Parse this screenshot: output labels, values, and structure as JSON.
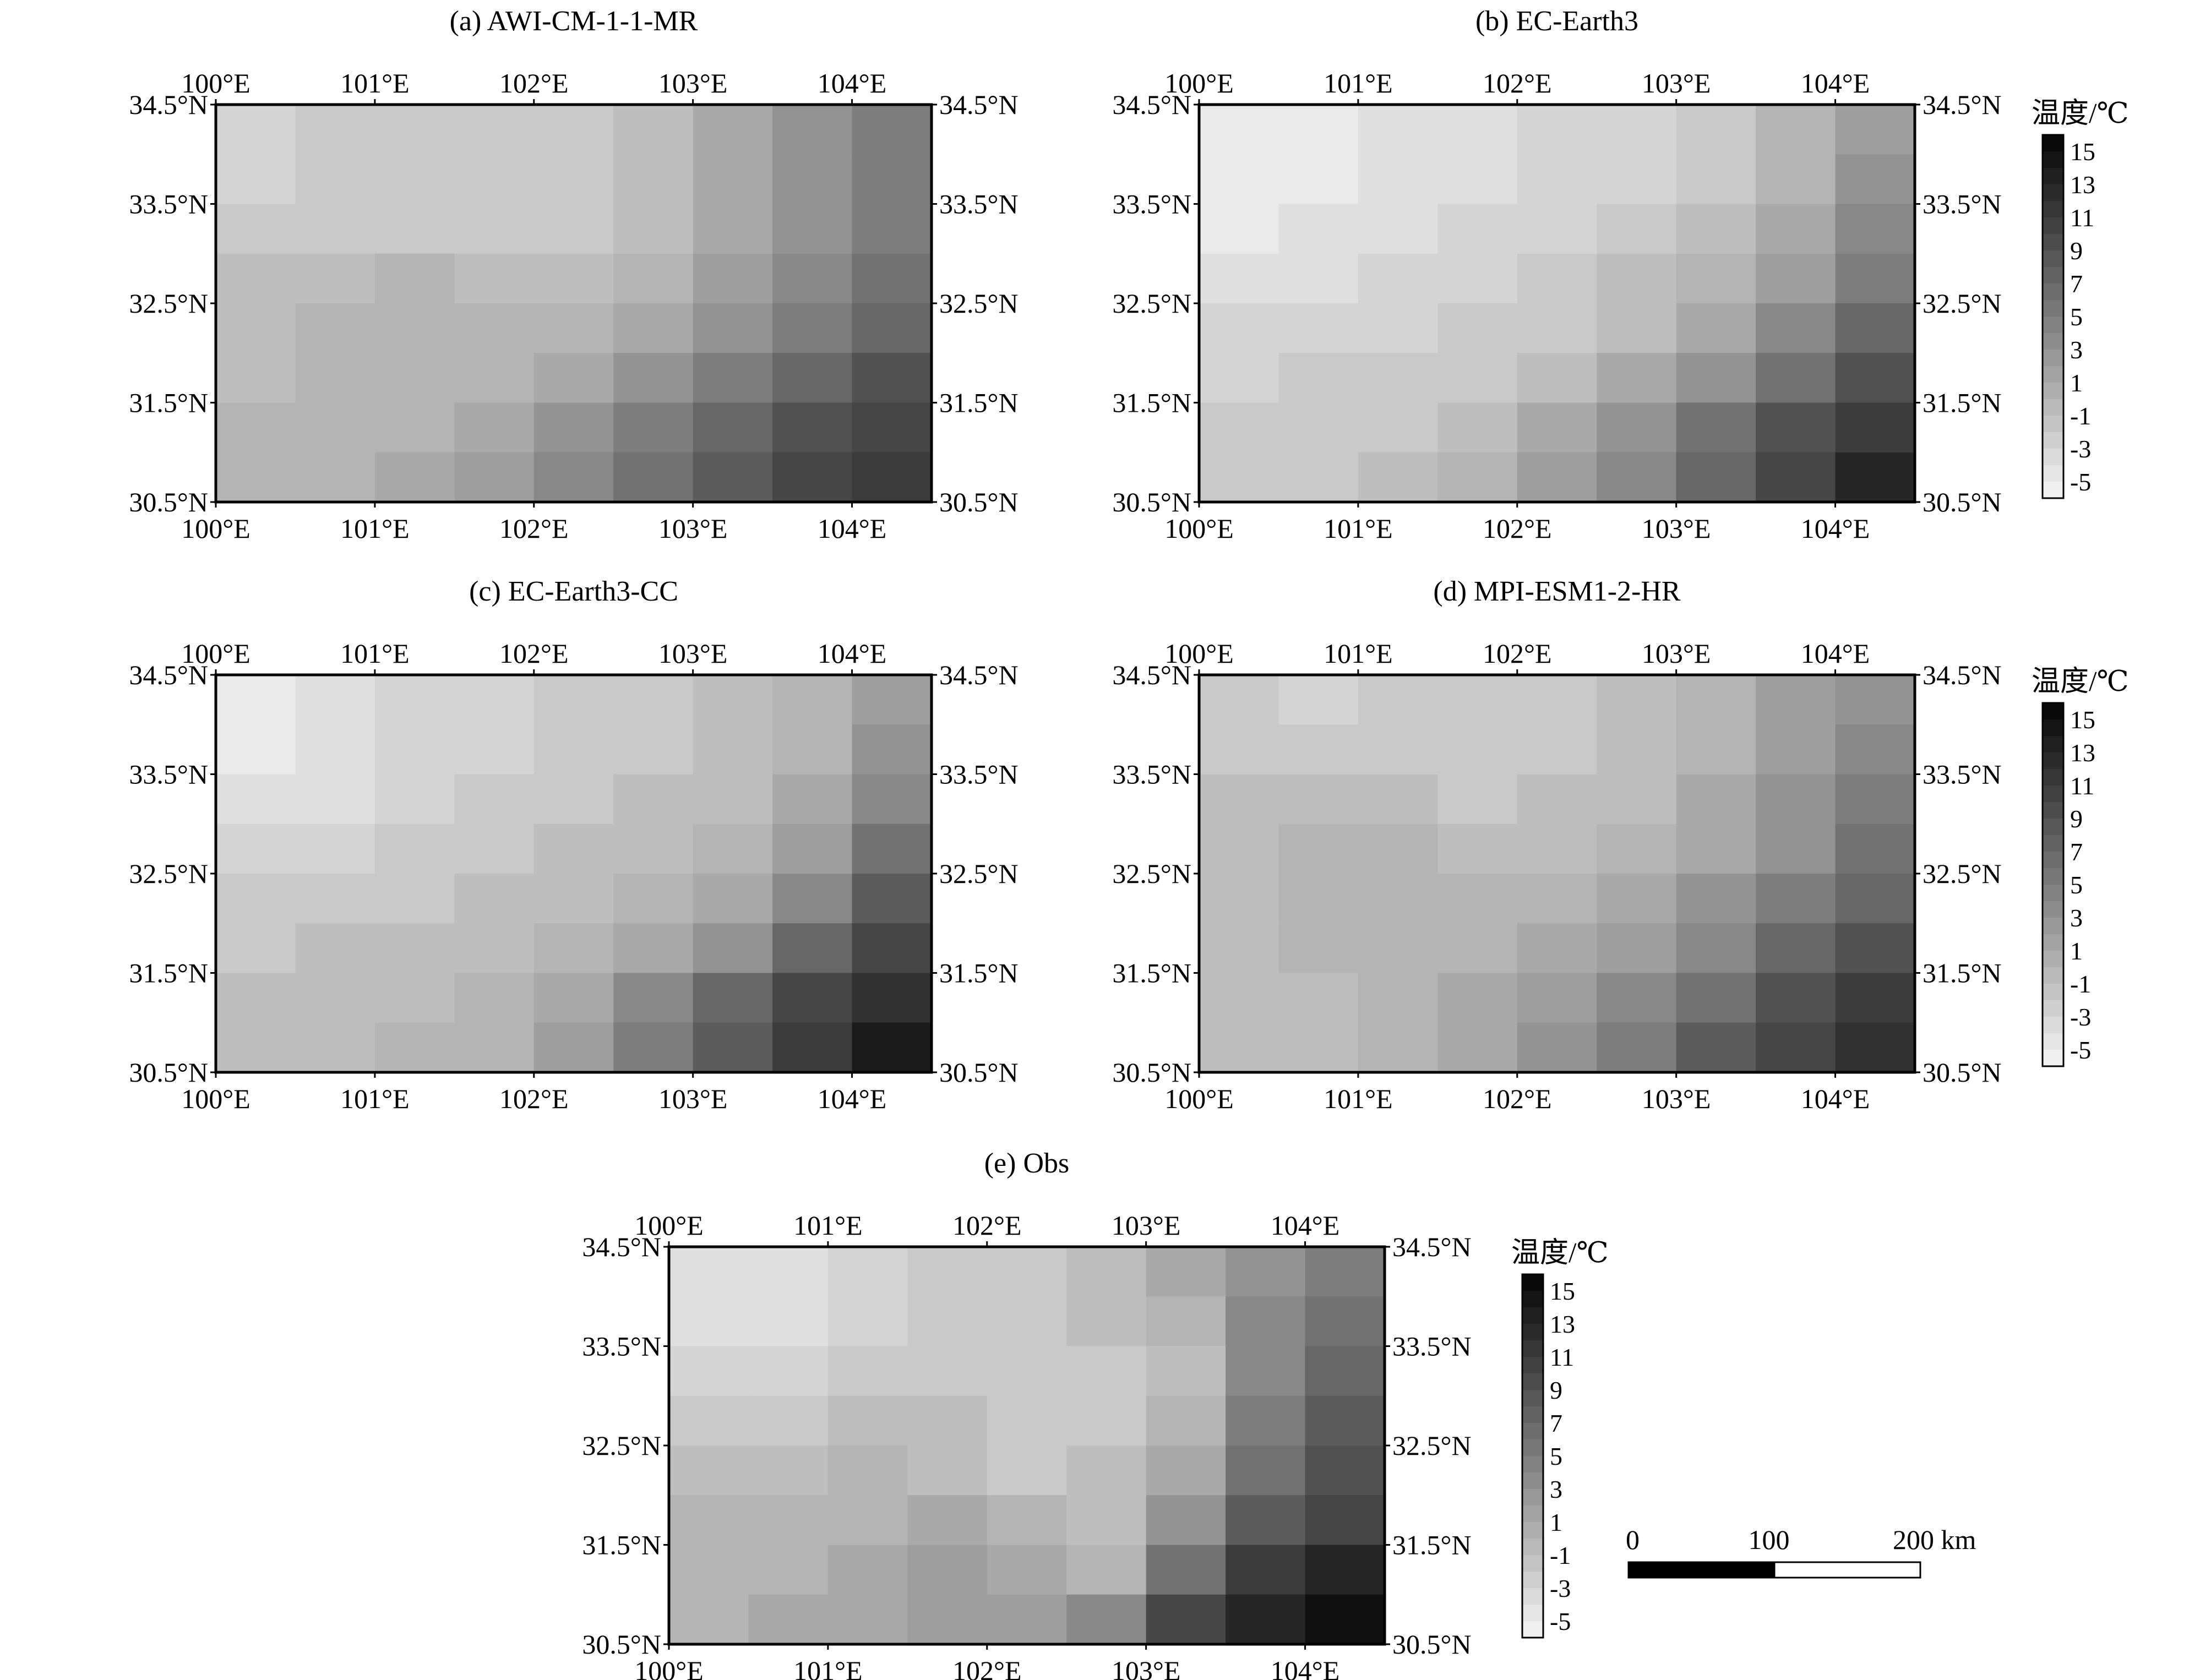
{
  "axes": {
    "lon_ticks": [
      "100°E",
      "101°E",
      "102°E",
      "103°E",
      "104°E"
    ],
    "lat_ticks": [
      "34.5°N",
      "33.5°N",
      "32.5°N",
      "31.5°N",
      "30.5°N"
    ],
    "lon_range": [
      100.0,
      104.5
    ],
    "lat_range": [
      30.5,
      34.5
    ]
  },
  "colorbar": {
    "title": "温度/℃",
    "labels": [
      "15",
      "13",
      "11",
      "9",
      "7",
      "5",
      "3",
      "1",
      "-1",
      "-3",
      "-5"
    ],
    "range": [
      -6,
      16
    ],
    "low_color": "#ffffff",
    "high_color": "#000000"
  },
  "scale_bar": {
    "labels": [
      "0",
      "100",
      "200 km"
    ]
  },
  "panels": [
    {
      "id": "a",
      "title": "(a) AWI-CM-1-1-MR"
    },
    {
      "id": "b",
      "title": "(b) EC-Earth3"
    },
    {
      "id": "c",
      "title": "(c) EC-Earth3-CC"
    },
    {
      "id": "d",
      "title": "(d) MPI-ESM1-2-HR"
    },
    {
      "id": "e",
      "title": "(e) Obs"
    }
  ],
  "chart_data": [
    {
      "type": "heatmap",
      "title": "(a) AWI-CM-1-1-MR",
      "x": [
        100.25,
        100.75,
        101.25,
        101.75,
        102.25,
        102.75,
        103.25,
        103.75,
        104.25
      ],
      "y": [
        34.25,
        33.75,
        33.25,
        32.75,
        32.25,
        31.75,
        31.25,
        30.75
      ],
      "values": [
        [
          -3,
          -2,
          -2,
          -2,
          -2,
          -1,
          1,
          3,
          5
        ],
        [
          -3,
          -2,
          -2,
          -2,
          -2,
          -1,
          1,
          3,
          5
        ],
        [
          -2,
          -2,
          -2,
          -2,
          -2,
          -1,
          1,
          3,
          5
        ],
        [
          -1,
          -1,
          0,
          -1,
          -1,
          0,
          2,
          4,
          6
        ],
        [
          -1,
          0,
          0,
          0,
          0,
          1,
          3,
          5,
          7
        ],
        [
          -1,
          0,
          0,
          0,
          1,
          3,
          5,
          7,
          9
        ],
        [
          0,
          0,
          0,
          1,
          3,
          5,
          7,
          9,
          10
        ],
        [
          0,
          0,
          1,
          2,
          4,
          6,
          8,
          10,
          11
        ]
      ]
    },
    {
      "type": "heatmap",
      "title": "(b) EC-Earth3",
      "x": [
        100.25,
        100.75,
        101.25,
        101.75,
        102.25,
        102.75,
        103.25,
        103.75,
        104.25
      ],
      "y": [
        34.25,
        33.75,
        33.25,
        32.75,
        32.25,
        31.75,
        31.25,
        30.75
      ],
      "values": [
        [
          -5,
          -5,
          -4,
          -4,
          -3,
          -3,
          -2,
          0,
          2
        ],
        [
          -5,
          -5,
          -4,
          -4,
          -3,
          -3,
          -2,
          0,
          3
        ],
        [
          -5,
          -4,
          -4,
          -3,
          -3,
          -2,
          -1,
          1,
          4
        ],
        [
          -4,
          -4,
          -3,
          -3,
          -2,
          -1,
          0,
          2,
          5
        ],
        [
          -3,
          -3,
          -3,
          -2,
          -2,
          -1,
          1,
          4,
          7
        ],
        [
          -3,
          -2,
          -2,
          -2,
          -1,
          1,
          3,
          6,
          9
        ],
        [
          -2,
          -2,
          -2,
          -1,
          1,
          3,
          6,
          9,
          11
        ],
        [
          -2,
          -2,
          -1,
          0,
          2,
          4,
          7,
          10,
          13
        ]
      ]
    },
    {
      "type": "heatmap",
      "title": "(c) EC-Earth3-CC",
      "x": [
        100.25,
        100.75,
        101.25,
        101.75,
        102.25,
        102.75,
        103.25,
        103.75,
        104.25
      ],
      "y": [
        34.25,
        33.75,
        33.25,
        32.75,
        32.25,
        31.75,
        31.25,
        30.75
      ],
      "values": [
        [
          -5,
          -4,
          -3,
          -3,
          -2,
          -2,
          -1,
          0,
          2
        ],
        [
          -5,
          -4,
          -3,
          -3,
          -2,
          -2,
          -1,
          0,
          3
        ],
        [
          -4,
          -4,
          -3,
          -2,
          -2,
          -1,
          -1,
          1,
          4
        ],
        [
          -3,
          -3,
          -2,
          -2,
          -1,
          -1,
          0,
          2,
          6
        ],
        [
          -2,
          -2,
          -2,
          -1,
          -1,
          0,
          1,
          4,
          8
        ],
        [
          -2,
          -1,
          -1,
          -1,
          0,
          1,
          3,
          7,
          10
        ],
        [
          -1,
          -1,
          -1,
          0,
          1,
          4,
          7,
          10,
          12
        ],
        [
          -1,
          -1,
          0,
          0,
          2,
          5,
          8,
          11,
          14
        ]
      ]
    },
    {
      "type": "heatmap",
      "title": "(d) MPI-ESM1-2-HR",
      "x": [
        100.25,
        100.75,
        101.25,
        101.75,
        102.25,
        102.75,
        103.25,
        103.75,
        104.25
      ],
      "y": [
        34.25,
        33.75,
        33.25,
        32.75,
        32.25,
        31.75,
        31.25,
        30.75
      ],
      "values": [
        [
          -2,
          -3,
          -2,
          -2,
          -2,
          -1,
          0,
          2,
          3
        ],
        [
          -2,
          -2,
          -2,
          -2,
          -2,
          -1,
          0,
          2,
          4
        ],
        [
          -1,
          -1,
          -1,
          -2,
          -1,
          -1,
          1,
          3,
          5
        ],
        [
          -1,
          0,
          0,
          -1,
          -1,
          0,
          1,
          3,
          6
        ],
        [
          -1,
          0,
          0,
          0,
          0,
          1,
          3,
          5,
          7
        ],
        [
          -1,
          0,
          0,
          0,
          1,
          2,
          4,
          7,
          9
        ],
        [
          -1,
          -1,
          0,
          1,
          2,
          4,
          6,
          9,
          11
        ],
        [
          -1,
          -1,
          0,
          1,
          3,
          5,
          8,
          10,
          12
        ]
      ]
    },
    {
      "type": "heatmap",
      "title": "(e) Obs",
      "x": [
        100.25,
        100.75,
        101.25,
        101.75,
        102.25,
        102.75,
        103.25,
        103.75,
        104.25
      ],
      "y": [
        34.25,
        33.75,
        33.25,
        32.75,
        32.25,
        31.75,
        31.25,
        30.75
      ],
      "values": [
        [
          -4,
          -4,
          -3,
          -2,
          -2,
          -1,
          1,
          3,
          5
        ],
        [
          -4,
          -4,
          -3,
          -2,
          -2,
          -1,
          0,
          4,
          6
        ],
        [
          -3,
          -3,
          -2,
          -2,
          -2,
          -2,
          -1,
          4,
          7
        ],
        [
          -2,
          -2,
          -1,
          -1,
          -2,
          -2,
          0,
          5,
          8
        ],
        [
          -1,
          -1,
          0,
          -1,
          -2,
          -1,
          1,
          6,
          9
        ],
        [
          0,
          0,
          0,
          1,
          0,
          -1,
          3,
          8,
          10
        ],
        [
          0,
          0,
          1,
          2,
          1,
          0,
          6,
          11,
          13
        ],
        [
          0,
          1,
          1,
          2,
          2,
          4,
          10,
          13,
          15
        ]
      ]
    }
  ]
}
